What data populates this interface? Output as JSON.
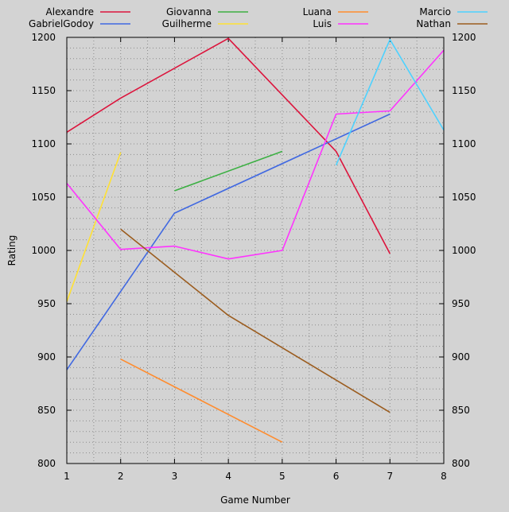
{
  "chart_data": {
    "type": "line",
    "title": "",
    "xlabel": "Game Number",
    "ylabel": "Rating",
    "xlim": [
      1,
      8
    ],
    "ylim": [
      800,
      1200
    ],
    "x_ticks": [
      1,
      2,
      3,
      4,
      5,
      6,
      7,
      8
    ],
    "y_ticks": [
      800,
      850,
      900,
      950,
      1000,
      1050,
      1100,
      1150,
      1200
    ],
    "grid": true,
    "y_axis_labels_both_sides": true,
    "legend_position": "top",
    "legend_columns": 4,
    "series": [
      {
        "name": "Alexandre",
        "color": "#dc143c",
        "points": [
          [
            1,
            1111
          ],
          [
            2,
            1143
          ],
          [
            4,
            1199
          ],
          [
            6,
            1093
          ],
          [
            7,
            997
          ]
        ]
      },
      {
        "name": "GabrielGodoy",
        "color": "#4169e1",
        "points": [
          [
            1,
            888
          ],
          [
            3,
            1035
          ],
          [
            7,
            1128
          ]
        ]
      },
      {
        "name": "Giovanna",
        "color": "#3cb043",
        "points": [
          [
            3,
            1056
          ],
          [
            5,
            1093
          ]
        ]
      },
      {
        "name": "Guilherme",
        "color": "#ffe135",
        "points": [
          [
            1,
            952
          ],
          [
            2,
            1092
          ]
        ]
      },
      {
        "name": "Luana",
        "color": "#ff8c2e",
        "points": [
          [
            2,
            898
          ],
          [
            5,
            820
          ]
        ]
      },
      {
        "name": "Luis",
        "color": "#ff33ff",
        "points": [
          [
            1,
            1063
          ],
          [
            2,
            1001
          ],
          [
            3,
            1004
          ],
          [
            4,
            992
          ],
          [
            5,
            1000
          ],
          [
            6,
            1128
          ],
          [
            7,
            1131
          ],
          [
            8,
            1188
          ]
        ]
      },
      {
        "name": "Marcio",
        "color": "#4dd2ff",
        "points": [
          [
            6,
            1080
          ],
          [
            7,
            1198
          ],
          [
            8,
            1113
          ]
        ]
      },
      {
        "name": "Nathan",
        "color": "#9b5c1e",
        "points": [
          [
            2,
            1020
          ],
          [
            4,
            939
          ],
          [
            7,
            848
          ]
        ]
      }
    ]
  }
}
